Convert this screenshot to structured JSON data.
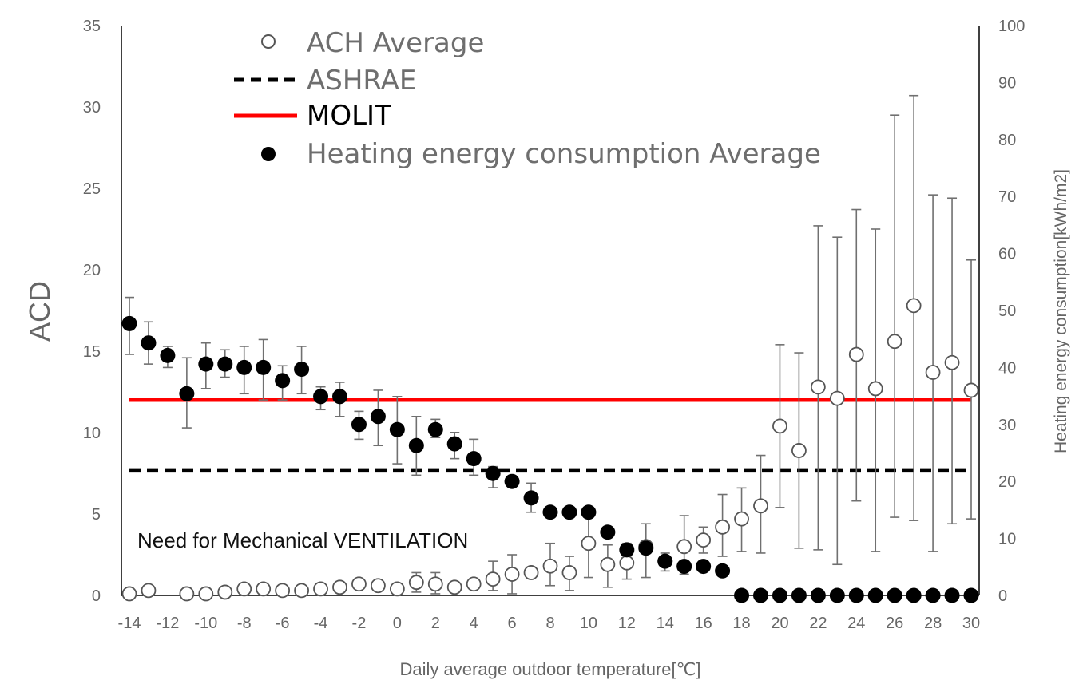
{
  "chart_data": {
    "type": "scatter",
    "xlabel": "Daily average outdoor temperature[℃]",
    "ylabel": "ACD",
    "y2label": "Heating energy consumption[kWh/m2]",
    "xlim": [
      -14,
      30
    ],
    "ylim": [
      0,
      35
    ],
    "y2lim": [
      0,
      100
    ],
    "x_ticks": [
      -14,
      -12,
      -10,
      -8,
      -6,
      -4,
      -2,
      0,
      2,
      4,
      6,
      8,
      10,
      12,
      14,
      16,
      18,
      20,
      22,
      24,
      26,
      28,
      30
    ],
    "y_ticks": [
      0,
      5,
      10,
      15,
      20,
      25,
      30,
      35
    ],
    "y2_ticks": [
      0,
      10,
      20,
      30,
      40,
      50,
      60,
      70,
      80,
      90,
      100
    ],
    "annotation": "Need for Mechanical VENTILATION",
    "legend": {
      "position": "top-left",
      "entries": [
        "ACH Average",
        "ASHRAE",
        "MOLIT",
        "Heating energy consumption Average"
      ]
    },
    "reference_lines": [
      {
        "name": "ASHRAE",
        "value": 7.7,
        "style": "dashed",
        "color": "#000000",
        "x_range": [
          -14,
          30
        ]
      },
      {
        "name": "MOLIT",
        "value": 12.0,
        "style": "solid",
        "color": "#ff0000",
        "x_range": [
          -14,
          30
        ]
      }
    ],
    "series": [
      {
        "name": "ACH Average",
        "axis": "left",
        "marker": "open-circle",
        "x": [
          -14,
          -13,
          -11,
          -10,
          -9,
          -8,
          -7,
          -6,
          -5,
          -4,
          -3,
          -2,
          -1,
          0,
          1,
          2,
          3,
          4,
          5,
          6,
          7,
          8,
          9,
          10,
          11,
          12,
          13,
          14,
          15,
          16,
          17,
          18,
          19,
          20,
          21,
          22,
          23,
          24,
          25,
          26,
          27,
          28,
          29,
          30
        ],
        "values": [
          0.1,
          0.3,
          0.1,
          0.1,
          0.2,
          0.4,
          0.4,
          0.3,
          0.3,
          0.4,
          0.5,
          0.7,
          0.6,
          0.4,
          0.8,
          0.7,
          0.5,
          0.7,
          1.0,
          1.3,
          1.4,
          1.8,
          1.4,
          3.2,
          1.9,
          2.0,
          3.0,
          2.1,
          3.0,
          3.4,
          4.2,
          4.7,
          5.5,
          10.4,
          8.9,
          12.8,
          12.1,
          14.8,
          12.7,
          15.6,
          17.8,
          13.7,
          14.3,
          12.6
        ],
        "err_low": [
          null,
          null,
          null,
          null,
          null,
          null,
          null,
          null,
          null,
          null,
          null,
          null,
          null,
          null,
          0.2,
          0.1,
          null,
          null,
          0.3,
          0.1,
          1.2,
          0.6,
          0.3,
          1.1,
          0.5,
          1.0,
          1.1,
          1.5,
          1.3,
          2.6,
          2.4,
          2.7,
          2.6,
          5.4,
          2.9,
          2.8,
          1.9,
          5.8,
          2.7,
          4.8,
          4.6,
          2.7,
          4.4,
          4.7
        ],
        "err_high": [
          null,
          null,
          null,
          null,
          null,
          null,
          null,
          null,
          null,
          null,
          null,
          null,
          null,
          null,
          1.4,
          1.4,
          null,
          null,
          2.1,
          2.5,
          1.6,
          3.2,
          2.4,
          4.9,
          3.1,
          3.2,
          4.4,
          2.6,
          4.9,
          4.2,
          6.2,
          6.6,
          8.6,
          15.4,
          14.9,
          22.7,
          22.0,
          23.7,
          22.5,
          29.5,
          30.7,
          24.6,
          24.4,
          20.6
        ]
      },
      {
        "name": "Heating energy consumption Average",
        "axis": "right",
        "marker": "filled-circle",
        "x": [
          -14,
          -13,
          -12,
          -11,
          -10,
          -9,
          -8,
          -7,
          -6,
          -5,
          -4,
          -3,
          -2,
          -1,
          0,
          1,
          2,
          3,
          4,
          5,
          6,
          7,
          8,
          9,
          10,
          11,
          12,
          13,
          14,
          15,
          16,
          17,
          18,
          19,
          20,
          21,
          22,
          23,
          24,
          25,
          26,
          27,
          28,
          29,
          30
        ],
        "values": [
          47.7,
          44.3,
          42.1,
          35.4,
          40.6,
          40.6,
          40.0,
          40.0,
          37.7,
          39.7,
          34.9,
          34.9,
          30.0,
          31.4,
          29.1,
          26.3,
          29.1,
          26.6,
          24.0,
          21.4,
          20.0,
          17.1,
          14.6,
          14.6,
          14.6,
          11.1,
          8.0,
          8.3,
          6.0,
          5.1,
          5.1,
          4.3,
          0,
          0,
          0,
          0,
          0,
          0,
          0,
          0,
          0,
          0,
          0,
          0,
          0
        ],
        "err_low": [
          42.3,
          40.6,
          40.0,
          29.4,
          36.3,
          38.3,
          35.4,
          34.3,
          34.3,
          35.4,
          32.6,
          31.4,
          27.4,
          26.3,
          23.1,
          21.1,
          27.7,
          24.0,
          21.1,
          18.9,
          null,
          14.6,
          null,
          null,
          null,
          null,
          null,
          null,
          null,
          null,
          null,
          null,
          null,
          null,
          null,
          null,
          null,
          null,
          null,
          null,
          null,
          null,
          null,
          null,
          null
        ],
        "err_high": [
          52.3,
          48.0,
          43.7,
          41.7,
          44.3,
          43.1,
          43.7,
          44.9,
          40.3,
          43.7,
          36.6,
          37.4,
          32.3,
          36.0,
          34.9,
          31.4,
          30.9,
          28.6,
          27.4,
          22.6,
          null,
          19.7,
          null,
          null,
          null,
          null,
          null,
          null,
          null,
          null,
          null,
          null,
          null,
          null,
          null,
          null,
          null,
          null,
          null,
          null,
          null,
          null,
          null,
          null,
          null
        ]
      }
    ]
  }
}
